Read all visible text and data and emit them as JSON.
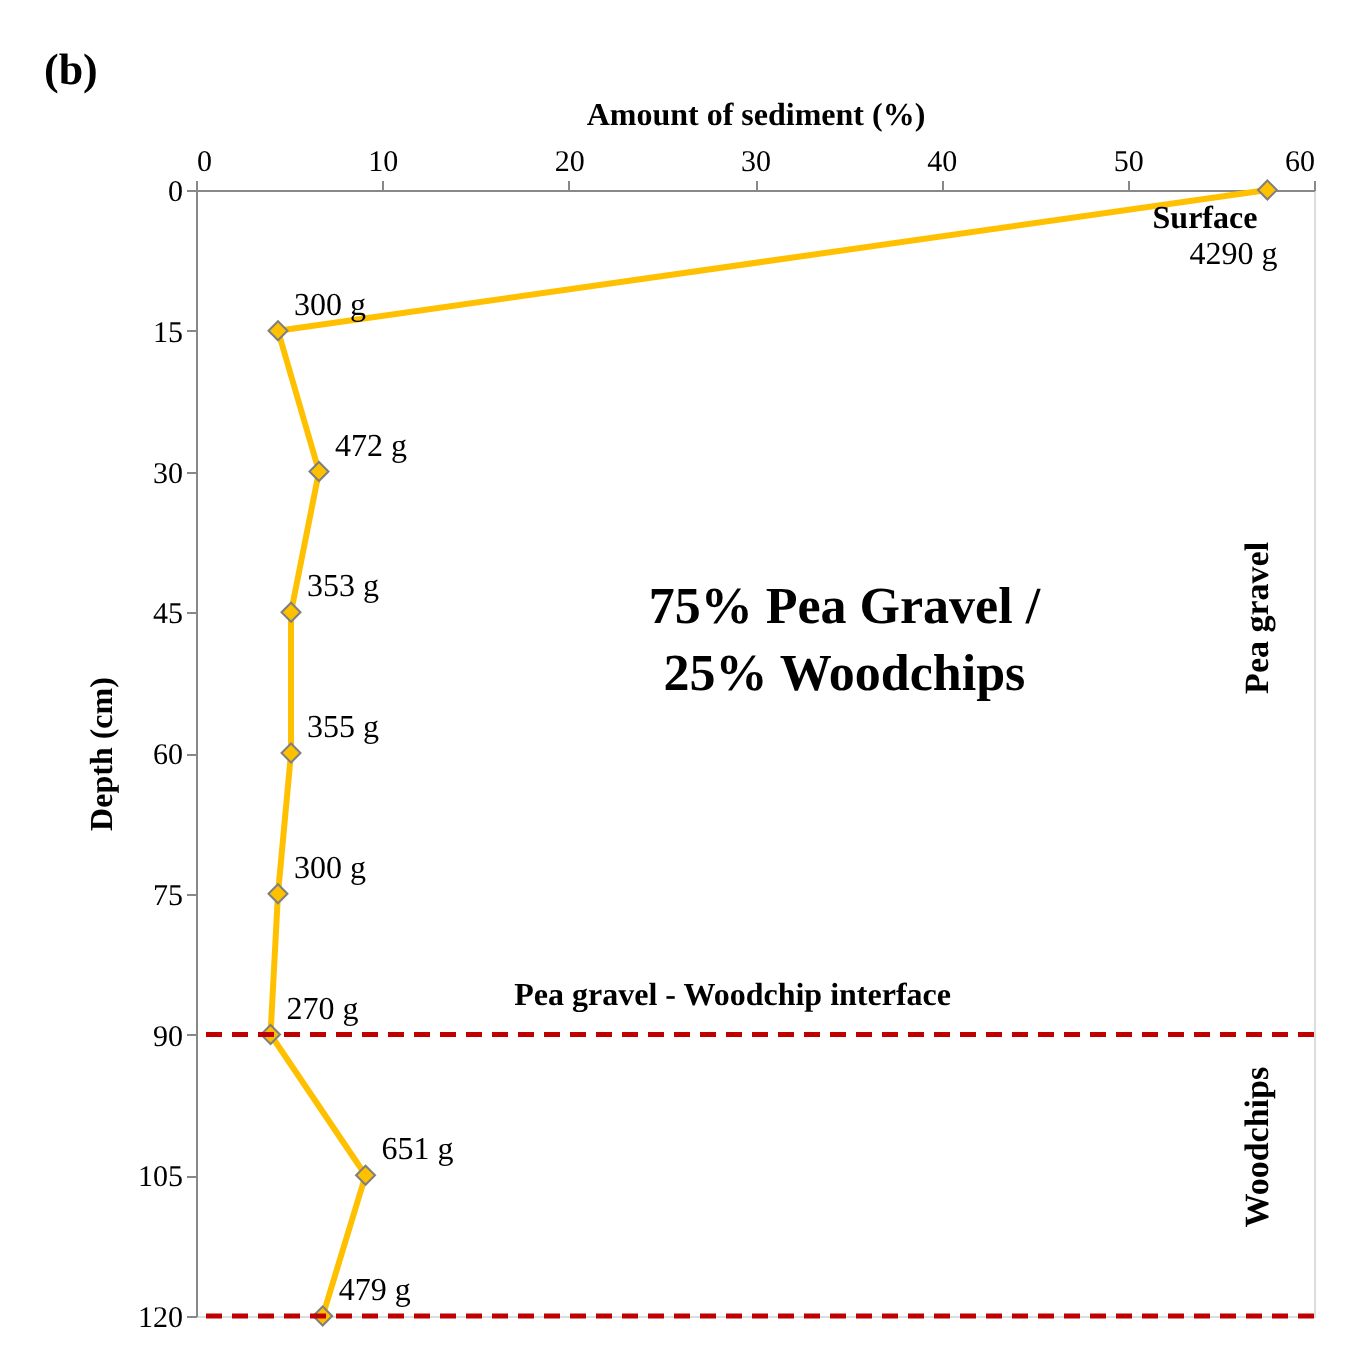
{
  "chart_data": {
    "type": "line",
    "xlabel": "Amount of sediment (%)",
    "ylabel": "Depth (cm)",
    "xlim": [
      0,
      60
    ],
    "xticks": [
      0,
      10,
      20,
      30,
      40,
      50,
      60
    ],
    "ylim": [
      120,
      0
    ],
    "yticks": [
      0,
      15,
      30,
      45,
      60,
      75,
      90,
      105,
      120
    ],
    "series": [
      {
        "color": "#ffc000",
        "x": [
          57.5,
          4.4,
          6.6,
          5.1,
          5.1,
          4.4,
          4.0,
          9.1,
          6.8
        ],
        "values": [
          0,
          15,
          30,
          45,
          60,
          75,
          90,
          105,
          120
        ]
      }
    ],
    "marker": "diamond",
    "line_style": "solid",
    "grid": false,
    "ref_lines": [
      {
        "axis": "y",
        "value": 90,
        "label": "Pea gravel - Woodchip interface",
        "color": "#c00000",
        "line_style": "dashed"
      },
      {
        "axis": "y",
        "value": 120,
        "label": null,
        "color": "#c00000",
        "line_style": "dashed"
      }
    ],
    "annotations": [
      "(b)",
      "75% Pea Gravel /",
      "25% Woodchips",
      "Pea gravel",
      "Woodchips",
      {
        "text": "Surface",
        "x": 57.5,
        "y": 0
      },
      {
        "text": "4290 g",
        "x": 57.5,
        "y": 0
      },
      {
        "text": "300 g",
        "x": 4.4,
        "y": 15
      },
      {
        "text": "472 g",
        "x": 6.6,
        "y": 30
      },
      {
        "text": "353 g",
        "x": 5.1,
        "y": 45
      },
      {
        "text": "355 g",
        "x": 5.1,
        "y": 60
      },
      {
        "text": "300 g",
        "x": 4.4,
        "y": 75
      },
      {
        "text": "270 g",
        "x": 4.0,
        "y": 90
      },
      {
        "text": "651 g",
        "x": 9.1,
        "y": 105
      },
      {
        "text": "479 g",
        "x": 6.8,
        "y": 120
      }
    ]
  }
}
